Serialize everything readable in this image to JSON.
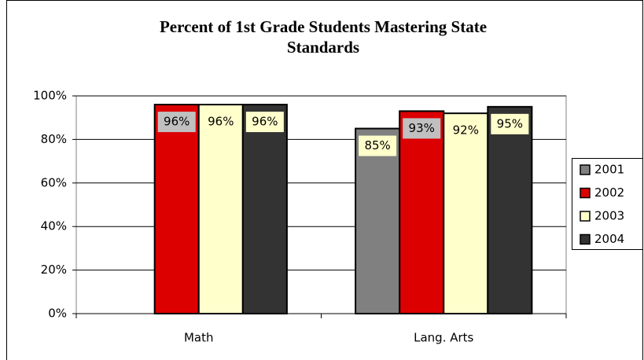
{
  "chart_data": {
    "type": "bar",
    "title_lines": [
      "Percent of 1st Grade Students Mastering State",
      "Standards"
    ],
    "categories": [
      "Math",
      "Lang. Arts"
    ],
    "series": [
      {
        "name": "2001",
        "color": "#808080",
        "label_background": "#ffffcc",
        "values": [
          null,
          85
        ],
        "value_labels": [
          null,
          "85%"
        ]
      },
      {
        "name": "2002",
        "color": "#dd0000",
        "label_background": "#c0c0c0",
        "values": [
          96,
          93
        ],
        "value_labels": [
          "96%",
          "93%"
        ]
      },
      {
        "name": "2003",
        "color": "#ffffcc",
        "label_background": "#ffffcc",
        "values": [
          96,
          92
        ],
        "value_labels": [
          "96%",
          "92%"
        ]
      },
      {
        "name": "2004",
        "color": "#333333",
        "label_background": "#ffffcc",
        "values": [
          96,
          95
        ],
        "value_labels": [
          "96%",
          "95%"
        ]
      }
    ],
    "ylim": [
      0,
      100
    ],
    "yticks": [
      {
        "value": 0,
        "label": "0%"
      },
      {
        "value": 20,
        "label": "20%"
      },
      {
        "value": 40,
        "label": "40%"
      },
      {
        "value": 60,
        "label": "60%"
      },
      {
        "value": 80,
        "label": "80%"
      },
      {
        "value": 100,
        "label": "100%"
      }
    ],
    "grid": true,
    "legend": "right"
  }
}
